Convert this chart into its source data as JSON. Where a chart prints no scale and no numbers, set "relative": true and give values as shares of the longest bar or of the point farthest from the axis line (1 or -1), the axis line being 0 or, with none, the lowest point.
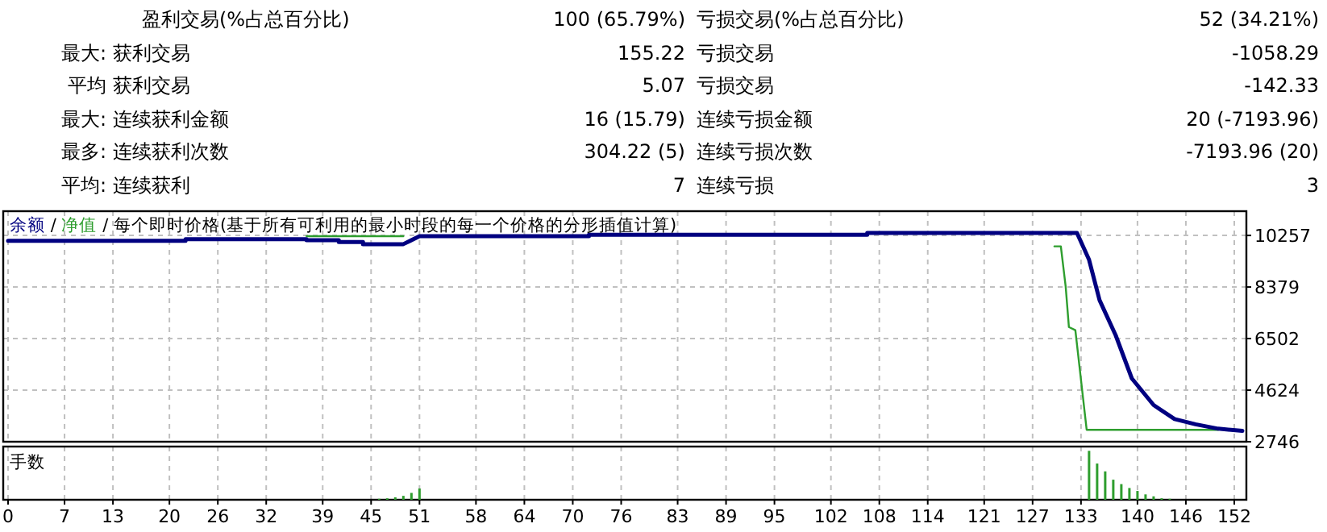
{
  "chart_data": [
    {
      "type": "other",
      "annotations": [
        "盈利交易(%占总百分比)",
        "100 (65.79%)",
        "亏损交易(%占总百分比)",
        "52 (34.21%)",
        "最大:",
        "获利交易",
        "155.22",
        "亏损交易",
        "-1058.29",
        "平均",
        "获利交易",
        "5.07",
        "亏损交易",
        "-142.33",
        "最大:",
        "连续获利金额",
        "16 (15.79)",
        "连续亏损金额",
        "20 (-7193.96)",
        "最多:",
        "连续获利次数",
        "304.22 (5)",
        "连续亏损次数",
        "-7193.96 (20)",
        "平均:",
        "连续获利",
        "7",
        "连续亏损",
        "3"
      ]
    },
    {
      "type": "line",
      "title": "/ 每个即时价格(基于所有可利用的最小时段的每一个价格的分形插值计算)",
      "annotations": [
        "/"
      ],
      "legend": "top left",
      "grid": true,
      "tick_labels": "y",
      "xlim": [
        -0.6,
        153.5
      ],
      "ylim": [
        2746,
        11140
      ],
      "xticks": [
        0,
        7,
        13,
        20,
        26,
        32,
        39,
        45,
        51,
        58,
        64,
        70,
        76,
        83,
        89,
        95,
        102,
        108,
        114,
        121,
        127,
        133,
        140,
        146,
        152
      ],
      "yticks": [
        2746,
        4624,
        6502,
        8379,
        10257
      ],
      "series": [
        {
          "name": "余额",
          "color": "#000080",
          "x": [
            0,
            22,
            22,
            37,
            37,
            41,
            41,
            44,
            44,
            49,
            51,
            72,
            72,
            106.5,
            106.5,
            132.5,
            134,
            135.3,
            137.3,
            139.3,
            142,
            144.6,
            147.2,
            150,
            153
          ],
          "values": [
            10060,
            10060,
            10120,
            10120,
            10080,
            10080,
            10020,
            10020,
            9940,
            9940,
            10230,
            10230,
            10280,
            10280,
            10350,
            10350,
            9370,
            7900,
            6620,
            5050,
            4080,
            3570,
            3380,
            3220,
            3140
          ]
        },
        {
          "name": "净值",
          "color": "#2e9e2e",
          "x": [
            37,
            49,
            null,
            129.7,
            130.5,
            131.1,
            131.5,
            132.3,
            133.7,
            150
          ],
          "values": [
            10230,
            10230,
            null,
            9860,
            9860,
            8390,
            6920,
            6810,
            3180,
            3180
          ]
        }
      ]
    },
    {
      "type": "bar",
      "title": "手数",
      "relative": true,
      "grid": "x",
      "tick_labels": "x",
      "color": "#2e9e2e",
      "xlim": [
        -0.6,
        153.5
      ],
      "xticks": [
        0,
        7,
        13,
        20,
        26,
        32,
        39,
        45,
        51,
        58,
        64,
        70,
        76,
        83,
        89,
        95,
        102,
        108,
        114,
        121,
        127,
        133,
        140,
        146,
        152
      ],
      "x": [
        46,
        47,
        48,
        49,
        50,
        51,
        134,
        135,
        136,
        137,
        138,
        139,
        140,
        141,
        142,
        143,
        144
      ],
      "values": [
        0.02,
        0.03,
        0.05,
        0.08,
        0.14,
        0.23,
        1,
        0.74,
        0.58,
        0.41,
        0.32,
        0.24,
        0.18,
        0.11,
        0.07,
        0.03,
        0.02
      ]
    }
  ]
}
